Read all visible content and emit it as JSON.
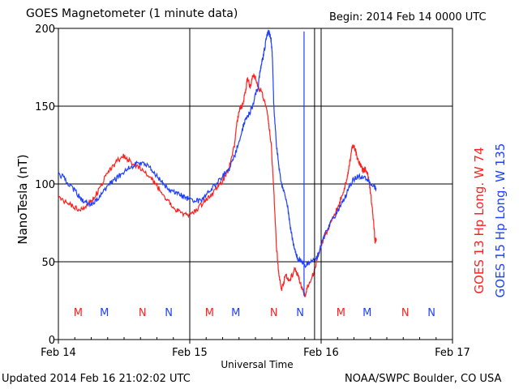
{
  "header": {
    "title": "GOES Magnetometer (1 minute data)",
    "begin": "Begin:  2014 Feb 14 0000 UTC"
  },
  "footer": {
    "updated": "Updated 2014 Feb 16 21:02:02 UTC",
    "credit": "NOAA/SWPC Boulder, CO USA"
  },
  "chart_data": {
    "type": "line",
    "title": "GOES Magnetometer (1 minute data)",
    "ylabel": "NanoTesla (nT)",
    "xlabel": "Universal Time",
    "ylim": [
      0,
      200
    ],
    "xlim_days": [
      0,
      3
    ],
    "x_unit": "days since 2014 Feb 14 0000 UTC",
    "yticks": [
      "0",
      "50",
      "100",
      "150",
      "200"
    ],
    "xticks": [
      {
        "x": 0,
        "label": "Feb 14"
      },
      {
        "x": 1,
        "label": "Feb 15"
      },
      {
        "x": 2,
        "label": "Feb 16"
      },
      {
        "x": 3,
        "label": "Feb 17"
      }
    ],
    "grid": true,
    "series": [
      {
        "name": "GOES 13 Hp  Long. W 74",
        "color": "#ff2020",
        "points": [
          [
            0.0,
            92
          ],
          [
            0.05,
            89
          ],
          [
            0.1,
            86
          ],
          [
            0.15,
            84
          ],
          [
            0.2,
            85
          ],
          [
            0.25,
            89
          ],
          [
            0.3,
            95
          ],
          [
            0.35,
            103
          ],
          [
            0.4,
            110
          ],
          [
            0.45,
            115
          ],
          [
            0.5,
            118
          ],
          [
            0.55,
            114
          ],
          [
            0.6,
            111
          ],
          [
            0.65,
            108
          ],
          [
            0.7,
            104
          ],
          [
            0.75,
            99
          ],
          [
            0.8,
            93
          ],
          [
            0.85,
            87
          ],
          [
            0.9,
            83
          ],
          [
            0.95,
            80
          ],
          [
            1.0,
            80
          ],
          [
            1.05,
            83
          ],
          [
            1.1,
            88
          ],
          [
            1.15,
            92
          ],
          [
            1.2,
            97
          ],
          [
            1.25,
            102
          ],
          [
            1.3,
            110
          ],
          [
            1.34,
            125
          ],
          [
            1.36,
            140
          ],
          [
            1.38,
            148
          ],
          [
            1.4,
            150
          ],
          [
            1.42,
            158
          ],
          [
            1.44,
            168
          ],
          [
            1.46,
            162
          ],
          [
            1.48,
            170
          ],
          [
            1.5,
            168
          ],
          [
            1.52,
            163
          ],
          [
            1.55,
            158
          ],
          [
            1.58,
            150
          ],
          [
            1.6,
            140
          ],
          [
            1.62,
            125
          ],
          [
            1.64,
            95
          ],
          [
            1.66,
            60
          ],
          [
            1.68,
            40
          ],
          [
            1.7,
            32
          ],
          [
            1.73,
            42
          ],
          [
            1.76,
            38
          ],
          [
            1.8,
            45
          ],
          [
            1.83,
            40
          ],
          [
            1.86,
            32
          ],
          [
            1.88,
            28
          ],
          [
            1.9,
            35
          ],
          [
            1.94,
            42
          ],
          [
            1.98,
            55
          ],
          [
            2.02,
            65
          ],
          [
            2.06,
            72
          ],
          [
            2.1,
            80
          ],
          [
            2.14,
            88
          ],
          [
            2.18,
            98
          ],
          [
            2.2,
            105
          ],
          [
            2.22,
            115
          ],
          [
            2.24,
            125
          ],
          [
            2.26,
            122
          ],
          [
            2.28,
            115
          ],
          [
            2.3,
            112
          ],
          [
            2.32,
            108
          ],
          [
            2.34,
            110
          ],
          [
            2.36,
            104
          ],
          [
            2.38,
            92
          ],
          [
            2.4,
            75
          ],
          [
            2.41,
            63
          ],
          [
            2.42,
            65
          ]
        ]
      },
      {
        "name": "GOES 15 Hp  Long. W 135",
        "color": "#2040ff",
        "points": [
          [
            0.0,
            107
          ],
          [
            0.05,
            103
          ],
          [
            0.1,
            98
          ],
          [
            0.15,
            93
          ],
          [
            0.2,
            88
          ],
          [
            0.25,
            87
          ],
          [
            0.3,
            90
          ],
          [
            0.35,
            96
          ],
          [
            0.4,
            101
          ],
          [
            0.45,
            104
          ],
          [
            0.5,
            108
          ],
          [
            0.55,
            111
          ],
          [
            0.6,
            113
          ],
          [
            0.65,
            113
          ],
          [
            0.7,
            110
          ],
          [
            0.75,
            105
          ],
          [
            0.8,
            100
          ],
          [
            0.85,
            96
          ],
          [
            0.9,
            94
          ],
          [
            0.95,
            92
          ],
          [
            1.0,
            90
          ],
          [
            1.05,
            89
          ],
          [
            1.1,
            90
          ],
          [
            1.15,
            95
          ],
          [
            1.2,
            100
          ],
          [
            1.25,
            105
          ],
          [
            1.3,
            110
          ],
          [
            1.35,
            120
          ],
          [
            1.4,
            135
          ],
          [
            1.42,
            140
          ],
          [
            1.45,
            145
          ],
          [
            1.48,
            150
          ],
          [
            1.5,
            158
          ],
          [
            1.52,
            162
          ],
          [
            1.54,
            175
          ],
          [
            1.56,
            182
          ],
          [
            1.58,
            192
          ],
          [
            1.59,
            196
          ],
          [
            1.6,
            198
          ],
          [
            1.61,
            196
          ],
          [
            1.62,
            192
          ],
          [
            1.63,
            180
          ],
          [
            1.64,
            150
          ],
          [
            1.66,
            125
          ],
          [
            1.68,
            110
          ],
          [
            1.7,
            100
          ],
          [
            1.72,
            95
          ],
          [
            1.74,
            88
          ],
          [
            1.76,
            75
          ],
          [
            1.78,
            65
          ],
          [
            1.8,
            58
          ],
          [
            1.82,
            52
          ],
          [
            1.85,
            50
          ],
          [
            1.88,
            48
          ],
          [
            1.92,
            50
          ],
          [
            1.96,
            52
          ],
          [
            1.98,
            55
          ],
          [
            2.0,
            60
          ],
          [
            2.04,
            70
          ],
          [
            2.08,
            76
          ],
          [
            2.12,
            82
          ],
          [
            2.16,
            88
          ],
          [
            2.2,
            95
          ],
          [
            2.24,
            102
          ],
          [
            2.28,
            105
          ],
          [
            2.32,
            104
          ],
          [
            2.36,
            102
          ],
          [
            2.4,
            99
          ],
          [
            2.42,
            97
          ]
        ]
      }
    ],
    "annotations": [
      {
        "text": "M",
        "x": 0.15,
        "series": 0
      },
      {
        "text": "M",
        "x": 0.35,
        "series": 1
      },
      {
        "text": "N",
        "x": 0.64,
        "series": 0
      },
      {
        "text": "N",
        "x": 0.84,
        "series": 1
      },
      {
        "text": "M",
        "x": 1.15,
        "series": 0
      },
      {
        "text": "M",
        "x": 1.35,
        "series": 1
      },
      {
        "text": "N",
        "x": 1.64,
        "series": 0
      },
      {
        "text": "N",
        "x": 1.84,
        "series": 1
      },
      {
        "text": "M",
        "x": 2.15,
        "series": 0
      },
      {
        "text": "M",
        "x": 2.35,
        "series": 1
      },
      {
        "text": "N",
        "x": 2.64,
        "series": 0
      },
      {
        "text": "N",
        "x": 2.84,
        "series": 1
      }
    ],
    "vertical_markers": [
      1.0,
      1.95,
      2.0
    ]
  }
}
